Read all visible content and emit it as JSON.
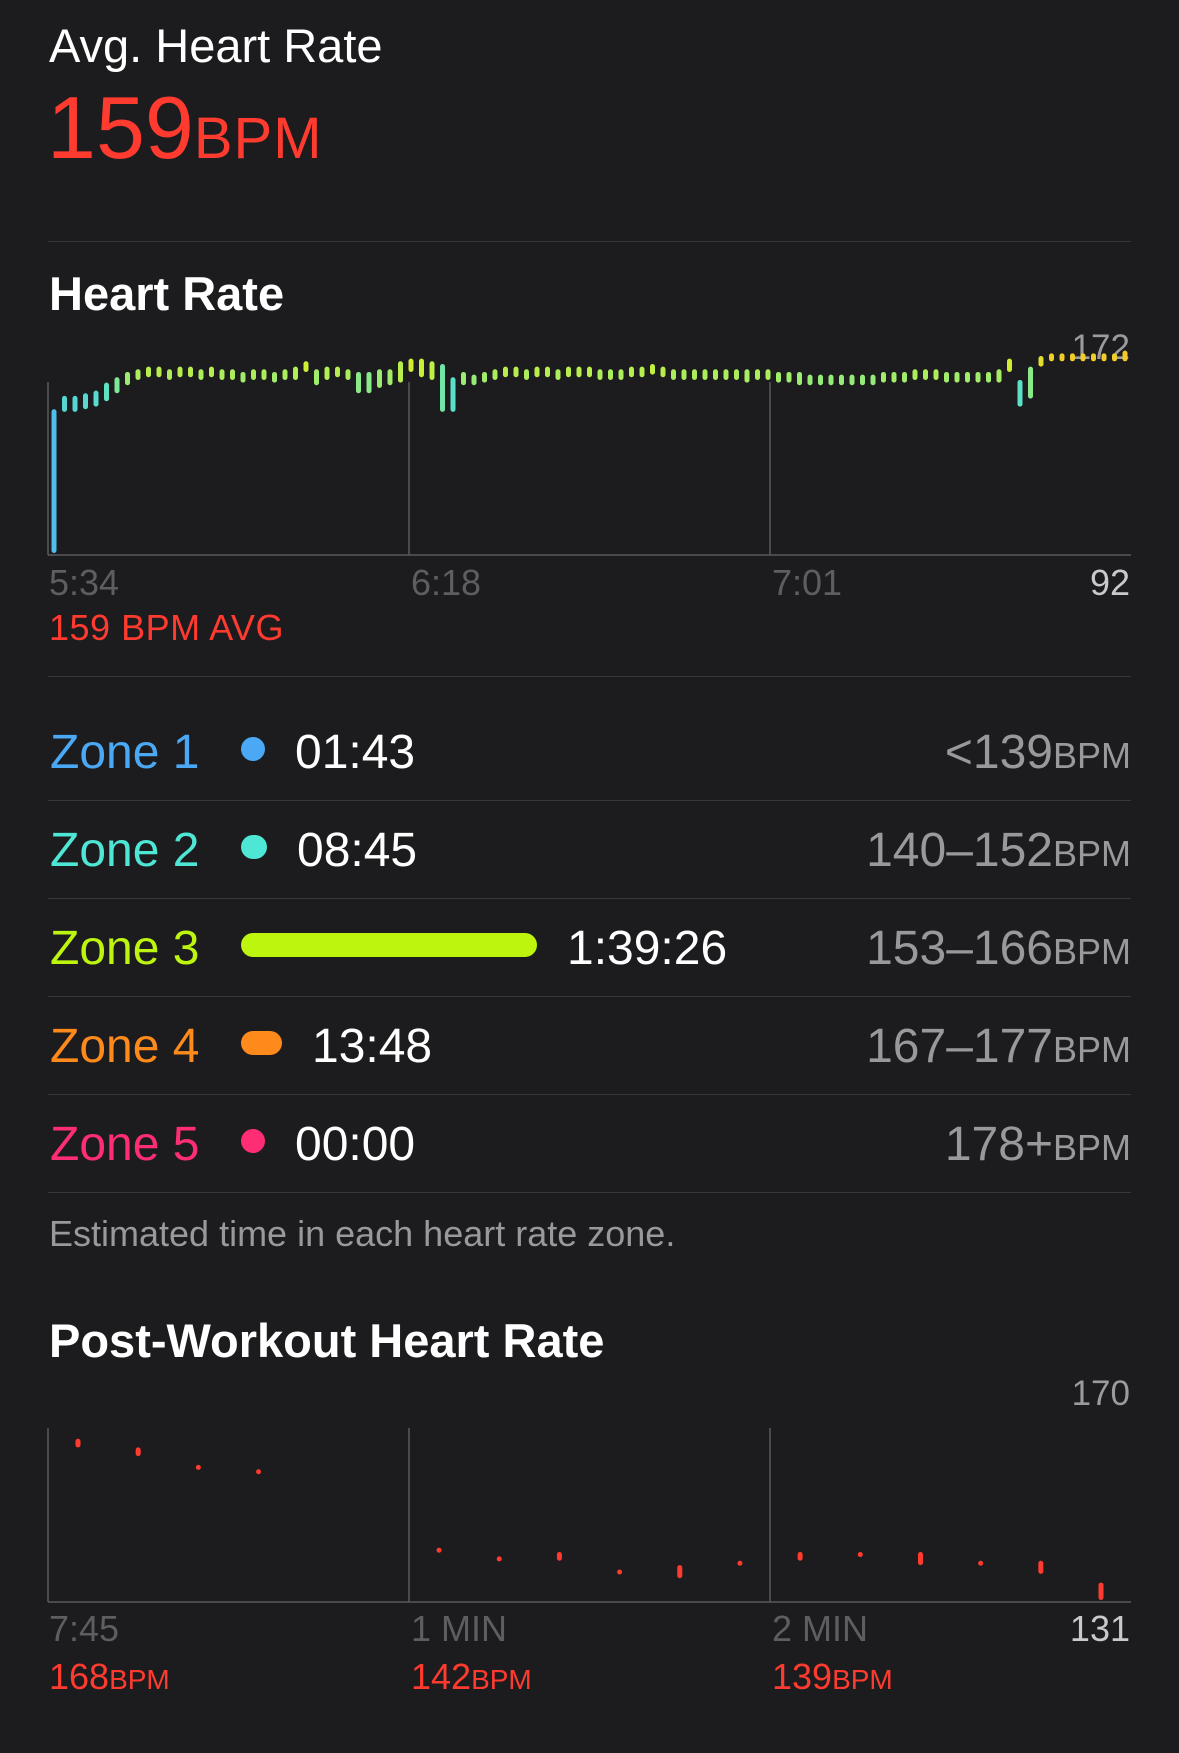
{
  "summary": {
    "label": "Avg. Heart Rate",
    "value": "159",
    "unit": "BPM"
  },
  "heart_rate_section": {
    "title": "Heart Rate",
    "avg_label": "159 BPM AVG"
  },
  "zones": {
    "items": [
      {
        "name": "Zone 1",
        "time": "01:43",
        "range": "<139",
        "unit": "BPM",
        "color": "#4aa8f5",
        "bar_fraction": 0.017
      },
      {
        "name": "Zone 2",
        "time": "08:45",
        "range": "140–152",
        "unit": "BPM",
        "color": "#4ee6d4",
        "bar_fraction": 0.088
      },
      {
        "name": "Zone 3",
        "time": "1:39:26",
        "range": "153–166",
        "unit": "BPM",
        "color": "#bdf50f",
        "bar_fraction": 1.0
      },
      {
        "name": "Zone 4",
        "time": "13:48",
        "range": "167–177",
        "unit": "BPM",
        "color": "#ff8a1c",
        "bar_fraction": 0.139
      },
      {
        "name": "Zone 5",
        "time": "00:00",
        "range": "178+",
        "unit": "BPM",
        "color": "#ff2d73",
        "bar_fraction": 0.0
      }
    ],
    "footnote": "Estimated time in each heart rate zone."
  },
  "post_workout_section": {
    "title": "Post-Workout Heart Rate",
    "values": [
      {
        "value": "168",
        "unit": "BPM"
      },
      {
        "value": "142",
        "unit": "BPM"
      },
      {
        "value": "139",
        "unit": "BPM"
      }
    ]
  },
  "chart_data": [
    {
      "type": "bar",
      "title": "Heart Rate",
      "ylim": [
        92,
        172
      ],
      "y_max_label": "172",
      "y_min_label": "92",
      "x_tick_labels": [
        "5:34",
        "6:18",
        "7:01"
      ],
      "grid": false,
      "series": [
        {
          "values": [
            [
              92,
              146
            ],
            [
              145,
              151
            ],
            [
              145,
              151
            ],
            [
              146,
              152
            ],
            [
              147,
              153
            ],
            [
              149,
              156
            ],
            [
              152,
              158
            ],
            [
              155,
              160
            ],
            [
              157,
              161
            ],
            [
              158,
              162
            ],
            [
              158,
              162
            ],
            [
              157,
              161
            ],
            [
              158,
              162
            ],
            [
              158,
              162
            ],
            [
              157,
              161
            ],
            [
              158,
              162
            ],
            [
              157,
              161
            ],
            [
              157,
              161
            ],
            [
              156,
              160
            ],
            [
              157,
              161
            ],
            [
              157,
              161
            ],
            [
              156,
              160
            ],
            [
              157,
              161
            ],
            [
              157,
              162
            ],
            [
              160,
              164
            ],
            [
              155,
              161
            ],
            [
              157,
              162
            ],
            [
              158,
              162
            ],
            [
              157,
              161
            ],
            [
              152,
              160
            ],
            [
              152,
              160
            ],
            [
              154,
              161
            ],
            [
              155,
              161
            ],
            [
              156,
              164
            ],
            [
              160,
              165
            ],
            [
              158,
              165
            ],
            [
              157,
              164
            ],
            [
              145,
              163
            ],
            [
              145,
              158
            ],
            [
              155,
              160
            ],
            [
              155,
              159
            ],
            [
              156,
              160
            ],
            [
              157,
              161
            ],
            [
              158,
              162
            ],
            [
              158,
              162
            ],
            [
              157,
              161
            ],
            [
              158,
              162
            ],
            [
              158,
              162
            ],
            [
              157,
              161
            ],
            [
              158,
              162
            ],
            [
              158,
              162
            ],
            [
              158,
              162
            ],
            [
              157,
              161
            ],
            [
              157,
              161
            ],
            [
              157,
              161
            ],
            [
              158,
              162
            ],
            [
              158,
              162
            ],
            [
              159,
              163
            ],
            [
              158,
              162
            ],
            [
              157,
              161
            ],
            [
              157,
              161
            ],
            [
              157,
              161
            ],
            [
              157,
              161
            ],
            [
              157,
              161
            ],
            [
              157,
              161
            ],
            [
              157,
              161
            ],
            [
              156,
              161
            ],
            [
              157,
              161
            ],
            [
              157,
              161
            ],
            [
              156,
              160
            ],
            [
              156,
              160
            ],
            [
              155,
              160
            ],
            [
              155,
              159
            ],
            [
              155,
              159
            ],
            [
              155,
              159
            ],
            [
              155,
              159
            ],
            [
              155,
              159
            ],
            [
              155,
              159
            ],
            [
              155,
              159
            ],
            [
              156,
              160
            ],
            [
              156,
              160
            ],
            [
              156,
              160
            ],
            [
              157,
              161
            ],
            [
              157,
              161
            ],
            [
              157,
              161
            ],
            [
              156,
              160
            ],
            [
              156,
              160
            ],
            [
              156,
              160
            ],
            [
              156,
              160
            ],
            [
              156,
              160
            ],
            [
              156,
              161
            ],
            [
              160,
              165
            ],
            [
              147,
              157
            ],
            [
              150,
              162
            ],
            [
              162,
              166
            ],
            [
              164,
              167
            ],
            [
              164,
              167
            ],
            [
              164,
              167
            ],
            [
              164,
              167
            ],
            [
              164,
              167
            ],
            [
              164,
              167
            ],
            [
              164,
              167
            ],
            [
              164,
              168
            ]
          ]
        }
      ]
    },
    {
      "type": "scatter",
      "title": "Post-Workout Heart Rate",
      "ylim": [
        131,
        170
      ],
      "y_max_label": "170",
      "y_min_label": "131",
      "x_tick_labels": [
        "7:45",
        "1 MIN",
        "2 MIN"
      ],
      "grid": false,
      "series": [
        {
          "values": [
            [
              166,
              168
            ],
            [
              164,
              166
            ],
            [
              161,
              162
            ],
            [
              160,
              161
            ],
            null,
            null,
            [
              142,
              143
            ],
            [
              140,
              141
            ],
            [
              140,
              142
            ],
            [
              137,
              138
            ],
            [
              136,
              139
            ],
            [
              139,
              140
            ],
            [
              140,
              142
            ],
            [
              141,
              142
            ],
            [
              139,
              142
            ],
            [
              139,
              140
            ],
            [
              137,
              140
            ],
            [
              131,
              135
            ]
          ]
        }
      ]
    }
  ]
}
